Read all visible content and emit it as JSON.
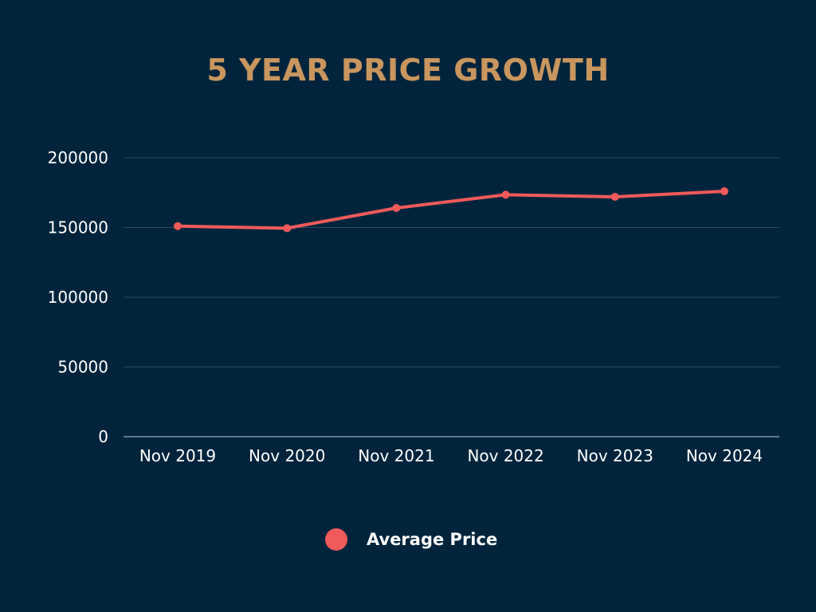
{
  "colors": {
    "background": "#01243c",
    "title": "#c9965f",
    "line": "#f05a5b",
    "grid": "#2c4a60",
    "text": "#ffffff"
  },
  "chart_data": {
    "type": "line",
    "title": "5 YEAR PRICE GROWTH",
    "xlabel": "",
    "ylabel": "",
    "categories": [
      "Nov 2019",
      "Nov 2020",
      "Nov 2021",
      "Nov 2022",
      "Nov 2023",
      "Nov 2024"
    ],
    "series": [
      {
        "name": "Average Price",
        "color": "#f05a5b",
        "values": [
          151000,
          149500,
          164000,
          173500,
          172000,
          176000
        ]
      }
    ],
    "ylim": [
      0,
      200000
    ],
    "yticks": [
      "0",
      "50000",
      "100000",
      "150000",
      "200000"
    ],
    "grid": true,
    "legend_position": "bottom-center"
  }
}
